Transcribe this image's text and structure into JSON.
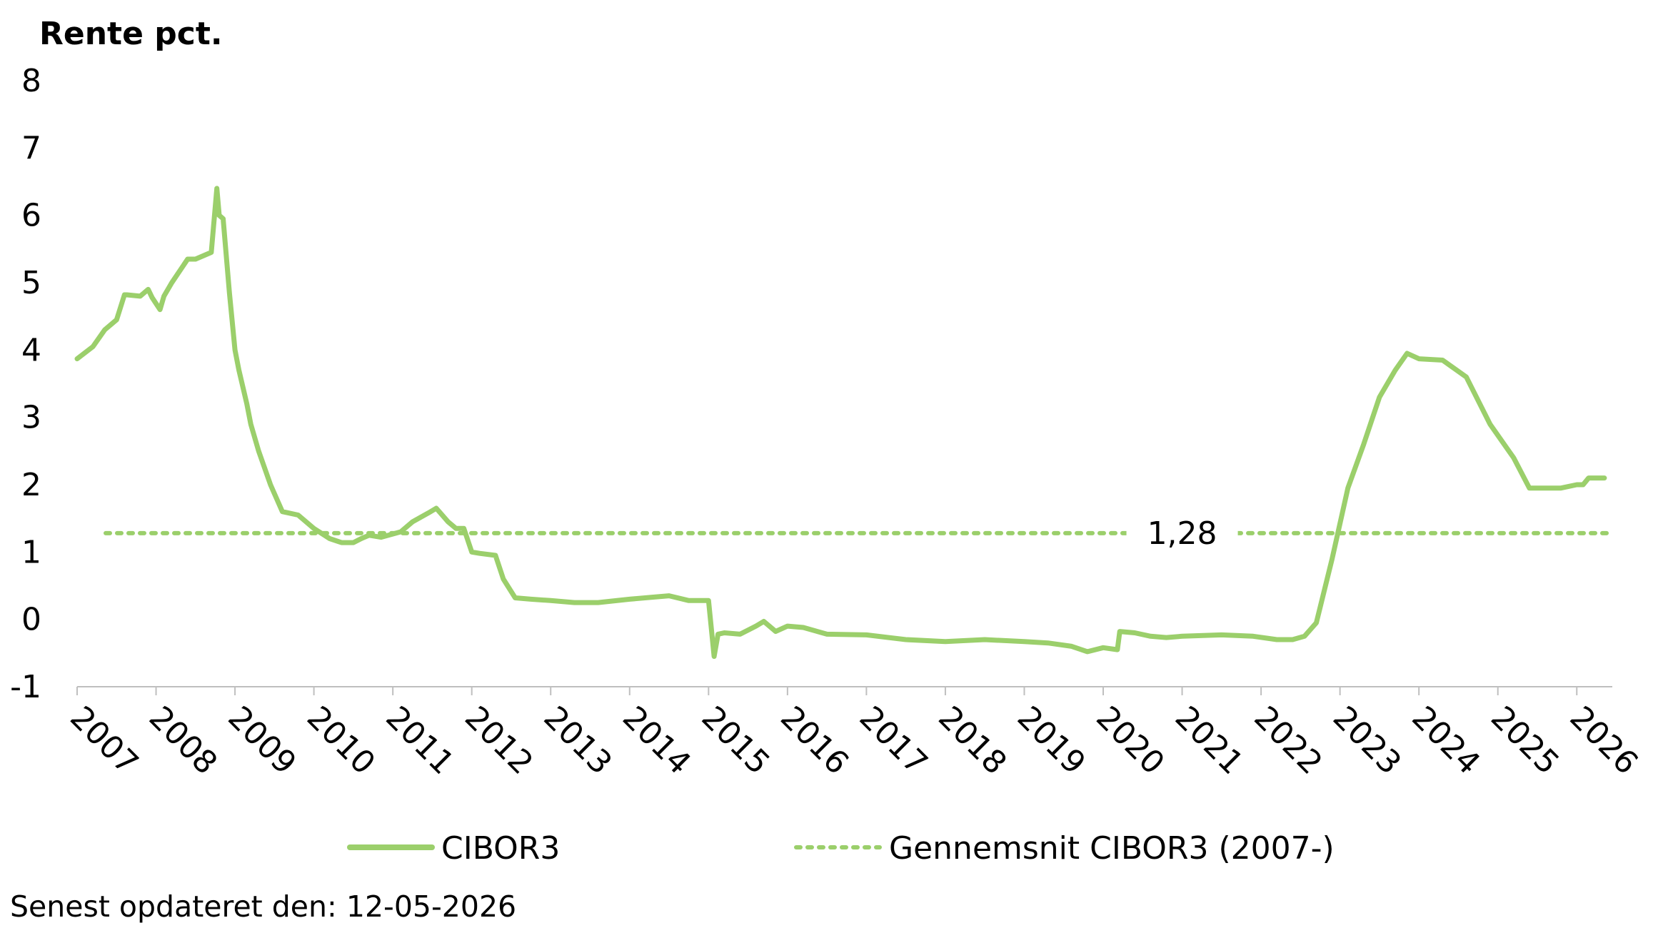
{
  "colors": {
    "series": "#9bcf6b",
    "axis": "#bfbfbf",
    "text": "#000000"
  },
  "chart_data": {
    "type": "line",
    "ylabel": "Rente pct.",
    "xlabel": "",
    "ylim": [
      -1,
      8
    ],
    "yticks": [
      -1,
      0,
      1,
      2,
      3,
      4,
      5,
      6,
      7,
      8
    ],
    "xlim": [
      2007,
      2026.45
    ],
    "xticks": [
      "2007",
      "2008",
      "2009",
      "2010",
      "2011",
      "2012",
      "2013",
      "2014",
      "2015",
      "2016",
      "2017",
      "2018",
      "2019",
      "2020",
      "2021",
      "2022",
      "2023",
      "2024",
      "2025",
      "2026"
    ],
    "grid": false,
    "legend_position": "bottom",
    "series": [
      {
        "name": "CIBOR3",
        "style": "solid",
        "x": [
          2007.0,
          2007.2,
          2007.35,
          2007.5,
          2007.6,
          2007.63,
          2007.8,
          2007.9,
          2007.95,
          2008.05,
          2008.1,
          2008.2,
          2008.4,
          2008.5,
          2008.7,
          2008.77,
          2008.8,
          2008.85,
          2008.93,
          2009.0,
          2009.05,
          2009.15,
          2009.2,
          2009.3,
          2009.45,
          2009.6,
          2009.8,
          2010.0,
          2010.2,
          2010.35,
          2010.5,
          2010.6,
          2010.7,
          2010.85,
          2011.1,
          2011.25,
          2011.45,
          2011.55,
          2011.7,
          2011.8,
          2011.9,
          2012.0,
          2012.1,
          2012.3,
          2012.4,
          2012.55,
          2012.75,
          2013.0,
          2013.3,
          2013.6,
          2014.0,
          2014.3,
          2014.5,
          2014.75,
          2015.0,
          2015.07,
          2015.12,
          2015.2,
          2015.4,
          2015.6,
          2015.7,
          2015.85,
          2016.0,
          2016.2,
          2016.5,
          2017.0,
          2017.5,
          2018.0,
          2018.5,
          2019.0,
          2019.3,
          2019.6,
          2019.8,
          2020.0,
          2020.18,
          2020.21,
          2020.4,
          2020.6,
          2020.8,
          2021.0,
          2021.5,
          2021.9,
          2022.2,
          2022.4,
          2022.55,
          2022.7,
          2022.9,
          2023.1,
          2023.3,
          2023.5,
          2023.7,
          2023.85,
          2024.0,
          2024.3,
          2024.6,
          2024.9,
          2025.2,
          2025.4,
          2025.8,
          2026.0,
          2026.08,
          2026.15,
          2026.35
        ],
        "values": [
          3.87,
          4.05,
          4.3,
          4.45,
          4.82,
          4.82,
          4.8,
          4.9,
          4.78,
          4.6,
          4.8,
          5.0,
          5.35,
          5.35,
          5.45,
          6.4,
          6.0,
          5.95,
          4.85,
          4.0,
          3.7,
          3.2,
          2.9,
          2.5,
          2.0,
          1.6,
          1.55,
          1.35,
          1.2,
          1.14,
          1.14,
          1.2,
          1.25,
          1.22,
          1.3,
          1.45,
          1.58,
          1.65,
          1.45,
          1.35,
          1.35,
          1.0,
          0.98,
          0.95,
          0.6,
          0.32,
          0.3,
          0.28,
          0.25,
          0.25,
          0.3,
          0.33,
          0.35,
          0.28,
          0.28,
          -0.55,
          -0.22,
          -0.2,
          -0.22,
          -0.1,
          -0.03,
          -0.18,
          -0.1,
          -0.12,
          -0.22,
          -0.23,
          -0.3,
          -0.33,
          -0.3,
          -0.33,
          -0.35,
          -0.4,
          -0.48,
          -0.42,
          -0.45,
          -0.18,
          -0.2,
          -0.25,
          -0.27,
          -0.25,
          -0.23,
          -0.25,
          -0.3,
          -0.3,
          -0.25,
          -0.05,
          0.9,
          1.95,
          2.6,
          3.3,
          3.7,
          3.95,
          3.87,
          3.85,
          3.6,
          2.9,
          2.4,
          1.95,
          1.95,
          2.0,
          2.0,
          2.1,
          2.1
        ]
      },
      {
        "name": "Gennemsnit CIBOR3 (2007-)",
        "style": "dotted",
        "value": 1.28,
        "label": "1,28"
      }
    ],
    "footer": "Senest opdateret den: 12-05-2026"
  }
}
